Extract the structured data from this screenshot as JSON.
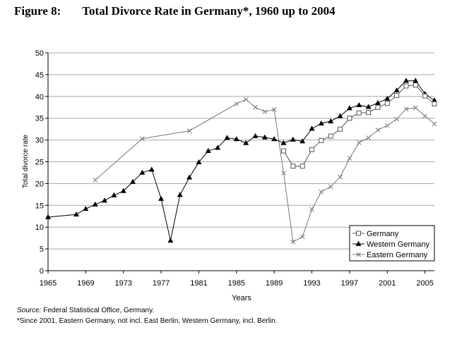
{
  "figure": {
    "label": "Figure 8:",
    "title": "Total Divorce Rate in Germany*, 1960 up to 2004"
  },
  "notes": {
    "source_label": "Source:",
    "source_text": " Federal Statistical Office, Germany.",
    "footnote": "*Since 2001, Eastern Germany, not incl. East Berlin, Western Germany, incl. Berlin."
  },
  "chart_data": {
    "type": "line",
    "xlabel": "Years",
    "ylabel": "Total divorce rate",
    "xlim": [
      1965,
      2006
    ],
    "ylim": [
      0,
      50
    ],
    "x_ticks": [
      1965,
      1969,
      1973,
      1977,
      1981,
      1985,
      1989,
      1993,
      1997,
      2001,
      2005
    ],
    "y_ticks": [
      0,
      5,
      10,
      15,
      20,
      25,
      30,
      35,
      40,
      45,
      50
    ],
    "grid": "horizontal",
    "legend_position": "bottom-right",
    "series": [
      {
        "name": "Germany",
        "marker": "square-open",
        "color": "#555555",
        "points": [
          [
            1990,
            27.5
          ],
          [
            1991,
            24.0
          ],
          [
            1992,
            24.0
          ],
          [
            1993,
            27.8
          ],
          [
            1994,
            29.9
          ],
          [
            1995,
            30.9
          ],
          [
            1996,
            32.5
          ],
          [
            1997,
            35.0
          ],
          [
            1998,
            36.2
          ],
          [
            1999,
            36.3
          ],
          [
            2000,
            37.5
          ],
          [
            2001,
            38.4
          ],
          [
            2002,
            40.2
          ],
          [
            2003,
            42.4
          ],
          [
            2004,
            42.6
          ],
          [
            2005,
            40.1
          ],
          [
            2006,
            38.3
          ]
        ]
      },
      {
        "name": "Western Germany",
        "marker": "triangle-filled",
        "color": "#000000",
        "points": [
          [
            1965,
            12.3
          ],
          [
            1968,
            12.9
          ],
          [
            1969,
            14.2
          ],
          [
            1970,
            15.2
          ],
          [
            1971,
            16.1
          ],
          [
            1972,
            17.3
          ],
          [
            1973,
            18.3
          ],
          [
            1974,
            20.4
          ],
          [
            1975,
            22.5
          ],
          [
            1976,
            23.2
          ],
          [
            1977,
            16.5
          ],
          [
            1978,
            6.9
          ],
          [
            1979,
            17.4
          ],
          [
            1980,
            21.4
          ],
          [
            1981,
            24.9
          ],
          [
            1982,
            27.5
          ],
          [
            1983,
            28.2
          ],
          [
            1984,
            30.5
          ],
          [
            1985,
            30.2
          ],
          [
            1986,
            29.3
          ],
          [
            1987,
            30.9
          ],
          [
            1988,
            30.6
          ],
          [
            1989,
            30.2
          ],
          [
            1990,
            29.3
          ],
          [
            1991,
            30.1
          ],
          [
            1992,
            29.7
          ],
          [
            1993,
            32.6
          ],
          [
            1994,
            33.8
          ],
          [
            1995,
            34.3
          ],
          [
            1996,
            35.5
          ],
          [
            1997,
            37.3
          ],
          [
            1998,
            38.0
          ],
          [
            1999,
            37.6
          ],
          [
            2000,
            38.5
          ],
          [
            2001,
            39.5
          ],
          [
            2002,
            41.4
          ],
          [
            2003,
            43.6
          ],
          [
            2004,
            43.6
          ],
          [
            2005,
            40.6
          ],
          [
            2006,
            39.1
          ]
        ]
      },
      {
        "name": "Eastern Germany",
        "marker": "x",
        "color": "#777777",
        "points": [
          [
            1970,
            20.8
          ],
          [
            1975,
            30.3
          ],
          [
            1980,
            32.1
          ],
          [
            1985,
            38.3
          ],
          [
            1986,
            39.3
          ],
          [
            1987,
            37.5
          ],
          [
            1988,
            36.5
          ],
          [
            1989,
            37.0
          ],
          [
            1990,
            22.4
          ],
          [
            1991,
            6.6
          ],
          [
            1992,
            7.8
          ],
          [
            1993,
            14.1
          ],
          [
            1994,
            18.1
          ],
          [
            1995,
            19.3
          ],
          [
            1996,
            21.5
          ],
          [
            1997,
            25.8
          ],
          [
            1998,
            29.4
          ],
          [
            1999,
            30.5
          ],
          [
            2000,
            32.3
          ],
          [
            2001,
            33.3
          ],
          [
            2002,
            34.8
          ],
          [
            2003,
            37.1
          ],
          [
            2004,
            37.4
          ],
          [
            2005,
            35.5
          ],
          [
            2006,
            33.7
          ]
        ]
      }
    ]
  }
}
